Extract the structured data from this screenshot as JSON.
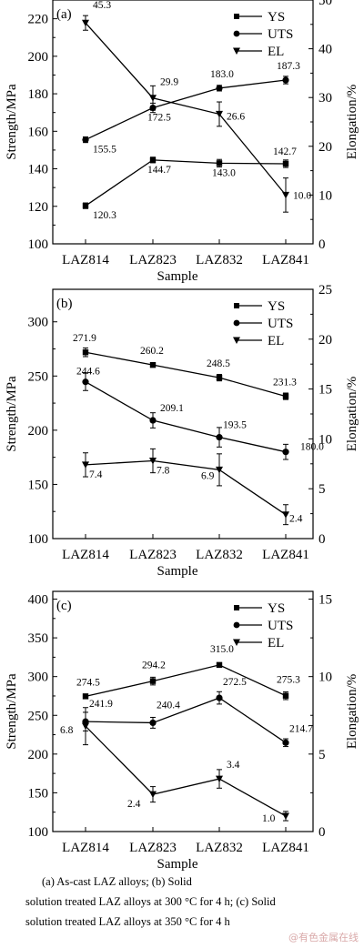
{
  "chart_data": [
    {
      "type": "line",
      "panel_label": "(a)",
      "categories": [
        "LAZ814",
        "LAZ823",
        "LAZ832",
        "LAZ841"
      ],
      "xlabel": "Sample",
      "ylabel": "Strength/MPa",
      "y2label": "Elongation/%",
      "ylim": [
        100,
        230
      ],
      "yticks": [
        100,
        120,
        140,
        160,
        180,
        200,
        220
      ],
      "y2lim": [
        0,
        50
      ],
      "y2ticks": [
        0,
        10,
        20,
        30,
        40,
        50
      ],
      "legend_position": "top-right",
      "series": [
        {
          "name": "YS",
          "marker": "square",
          "axis": "left",
          "values": [
            120.3,
            144.7,
            143.0,
            142.7
          ],
          "labels": [
            "120.3",
            "144.7",
            "143.0",
            "142.7"
          ],
          "errors": [
            1.5,
            1.5,
            2.0,
            2.0
          ]
        },
        {
          "name": "UTS",
          "marker": "circle",
          "axis": "left",
          "values": [
            155.5,
            172.5,
            183.0,
            187.3
          ],
          "labels": [
            "155.5",
            "172.5",
            "183.0",
            "187.3"
          ],
          "errors": [
            1.5,
            2.5,
            1.5,
            2.0
          ]
        },
        {
          "name": "EL",
          "marker": "triangle",
          "axis": "right",
          "values": [
            45.3,
            29.9,
            26.6,
            10.0
          ],
          "labels": [
            "45.3",
            "29.9",
            "26.6",
            "10.0"
          ],
          "errors": [
            1.5,
            2.5,
            2.5,
            3.5
          ]
        }
      ]
    },
    {
      "type": "line",
      "panel_label": "(b)",
      "categories": [
        "LAZ814",
        "LAZ823",
        "LAZ832",
        "LAZ841"
      ],
      "xlabel": "Sample",
      "ylabel": "Strength/MPa",
      "y2label": "Elongation/%",
      "ylim": [
        100,
        330
      ],
      "yticks": [
        100,
        150,
        200,
        250,
        300
      ],
      "y2lim": [
        0,
        25
      ],
      "y2ticks": [
        0,
        5,
        10,
        15,
        20,
        25
      ],
      "legend_position": "top-right",
      "series": [
        {
          "name": "YS",
          "marker": "square",
          "axis": "left",
          "values": [
            271.9,
            260.2,
            248.5,
            231.3
          ],
          "labels": [
            "271.9",
            "260.2",
            "248.5",
            "231.3"
          ],
          "errors": [
            4,
            2,
            3,
            3
          ]
        },
        {
          "name": "UTS",
          "marker": "circle",
          "axis": "left",
          "values": [
            244.6,
            209.1,
            193.5,
            180.0
          ],
          "labels": [
            "244.6",
            "209.1",
            "193.5",
            "180.0"
          ],
          "errors": [
            8,
            7,
            9,
            7
          ]
        },
        {
          "name": "EL",
          "marker": "triangle",
          "axis": "right",
          "values": [
            7.4,
            7.8,
            6.9,
            2.4
          ],
          "labels": [
            "7.4",
            "7.8",
            "6.9",
            "2.4"
          ],
          "errors": [
            1.2,
            1.2,
            1.6,
            1.0
          ]
        }
      ]
    },
    {
      "type": "line",
      "panel_label": "(c)",
      "categories": [
        "LAZ814",
        "LAZ823",
        "LAZ832",
        "LAZ841"
      ],
      "xlabel": "Sample",
      "ylabel": "Strength/MPa",
      "y2label": "Elongation/%",
      "ylim": [
        100,
        410
      ],
      "yticks": [
        100,
        150,
        200,
        250,
        300,
        350,
        400
      ],
      "y2lim": [
        0,
        15.5
      ],
      "y2ticks": [
        0,
        5,
        10,
        15
      ],
      "legend_position": "top-right",
      "series": [
        {
          "name": "YS",
          "marker": "square",
          "axis": "left",
          "values": [
            274.5,
            294.2,
            315.0,
            275.3
          ],
          "labels": [
            "274.5",
            "294.2",
            "315.0",
            "275.3"
          ],
          "errors": [
            3,
            5,
            3,
            5
          ]
        },
        {
          "name": "UTS",
          "marker": "circle",
          "axis": "left",
          "values": [
            241.9,
            240.4,
            272.5,
            214.7
          ],
          "labels": [
            "241.9",
            "240.4",
            "272.5",
            "214.7"
          ],
          "errors": [
            12,
            7,
            8,
            5
          ]
        },
        {
          "name": "EL",
          "marker": "triangle",
          "axis": "right",
          "values": [
            6.8,
            2.4,
            3.4,
            1.0
          ],
          "labels": [
            "6.8",
            "2.4",
            "3.4",
            "1.0"
          ],
          "errors": [
            1.2,
            0.5,
            0.6,
            0.3
          ]
        }
      ]
    }
  ],
  "caption": {
    "line1": "(a) As-cast LAZ alloys; (b) Solid",
    "line2": "solution treated LAZ alloys at 300 °C for 4 h; (c) Solid",
    "line3": "solution treated LAZ alloys at 350 °C for 4 h"
  },
  "watermark": "@有色金属在线"
}
